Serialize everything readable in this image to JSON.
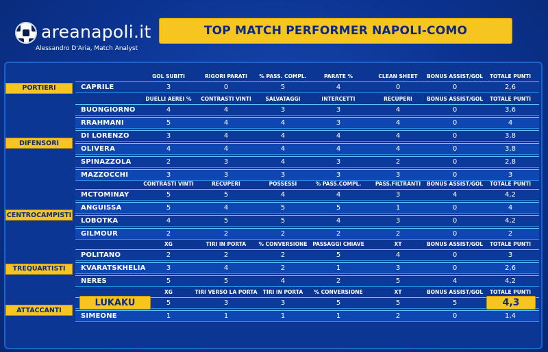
{
  "brand": {
    "name": "areanapoli.it",
    "subtitle": "Alessandro D'Aria, Match Analyst"
  },
  "title": "TOP MATCH PERFORMER NAPOLI-COMO",
  "colors": {
    "background": "#0b3391",
    "accent": "#f7c51f",
    "row_border": "#5fc9ff",
    "title_text": "#0a2a82"
  },
  "icons": {
    "logo": "soccer-ball-icon"
  },
  "sections": [
    {
      "id": "portieri",
      "role": "PORTIERI",
      "headers": [
        "GOL SUBITI",
        "RIGORI PARATI",
        "% PASS. COMPL.",
        "PARATE %",
        "CLEAN SHEET",
        "BONUS ASSIST/GOL",
        "TOTALE PUNTI"
      ],
      "players": [
        {
          "name": "CAPRILE",
          "values": [
            "3",
            "0",
            "5",
            "4",
            "0",
            "0",
            "2,6"
          ]
        }
      ]
    },
    {
      "id": "difensori",
      "role": "DIFENSORI",
      "headers": [
        "DUELLI AEREI %",
        "CONTRASTI VINTI",
        "SALVATAGGI",
        "INTERCETTI",
        "RECUPERI",
        "BONUS ASSIST/GOL",
        "TOTALE PUNTI"
      ],
      "players": [
        {
          "name": "BUONGIORNO",
          "values": [
            "4",
            "4",
            "3",
            "3",
            "4",
            "0",
            "3,6"
          ]
        },
        {
          "name": "RRAHMANI",
          "values": [
            "5",
            "4",
            "4",
            "3",
            "4",
            "0",
            "4"
          ]
        },
        {
          "name": "DI LORENZO",
          "values": [
            "3",
            "4",
            "4",
            "4",
            "4",
            "0",
            "3,8"
          ]
        },
        {
          "name": "OLIVERA",
          "values": [
            "4",
            "4",
            "4",
            "4",
            "4",
            "0",
            "3,8"
          ]
        },
        {
          "name": "SPINAZZOLA",
          "values": [
            "2",
            "3",
            "4",
            "3",
            "2",
            "0",
            "2,8"
          ]
        },
        {
          "name": "MAZZOCCHI",
          "values": [
            "3",
            "3",
            "3",
            "3",
            "3",
            "0",
            "3"
          ]
        }
      ]
    },
    {
      "id": "centrocampisti",
      "role": "CENTROCAMPISTI",
      "headers": [
        "CONTRASTI VINTI",
        "RECUPERI",
        "POSSESSI",
        "% PASS.COMPL.",
        "PASS.FILTRANTI",
        "BONUS ASSIST/GOL",
        "TOTALE PUNTI"
      ],
      "players": [
        {
          "name": "MCTOMINAY",
          "values": [
            "5",
            "5",
            "4",
            "4",
            "3",
            "4",
            "4,2"
          ]
        },
        {
          "name": "ANGUISSA",
          "values": [
            "5",
            "4",
            "5",
            "5",
            "1",
            "0",
            "4"
          ]
        },
        {
          "name": "LOBOTKA",
          "values": [
            "4",
            "5",
            "5",
            "4",
            "3",
            "0",
            "4,2"
          ]
        },
        {
          "name": "GILMOUR",
          "values": [
            "2",
            "2",
            "2",
            "2",
            "2",
            "0",
            "2"
          ]
        }
      ]
    },
    {
      "id": "trequartisti",
      "role": "TREQUARTISTI",
      "headers": [
        "XG",
        "TIRI IN PORTA",
        "% CONVERSIONE",
        "PASSAGGI CHIAVE",
        "XT",
        "BONUS ASSIST/GOL",
        "TOTALE PUNTI"
      ],
      "players": [
        {
          "name": "POLITANO",
          "values": [
            "2",
            "2",
            "2",
            "5",
            "4",
            "0",
            "3"
          ]
        },
        {
          "name": "KVARATSKHELIA",
          "values": [
            "3",
            "4",
            "2",
            "1",
            "3",
            "0",
            "2,6"
          ]
        },
        {
          "name": "NERES",
          "values": [
            "5",
            "5",
            "4",
            "2",
            "5",
            "4",
            "4,2"
          ]
        }
      ]
    },
    {
      "id": "attaccanti",
      "role": "ATTACCANTI",
      "headers": [
        "XG",
        "TIRI VERSO LA PORTA",
        "TIRI IN PORTA",
        "% CONVERSIONE",
        "XT",
        "BONUS ASSIST/GOL",
        "TOTALE PUNTI"
      ],
      "players": [
        {
          "name": "LUKAKU",
          "values": [
            "5",
            "3",
            "3",
            "5",
            "5",
            "5",
            "4,3"
          ],
          "highlight": true
        },
        {
          "name": "SIMEONE",
          "values": [
            "1",
            "1",
            "1",
            "1",
            "2",
            "0",
            "1,4"
          ]
        }
      ]
    }
  ]
}
